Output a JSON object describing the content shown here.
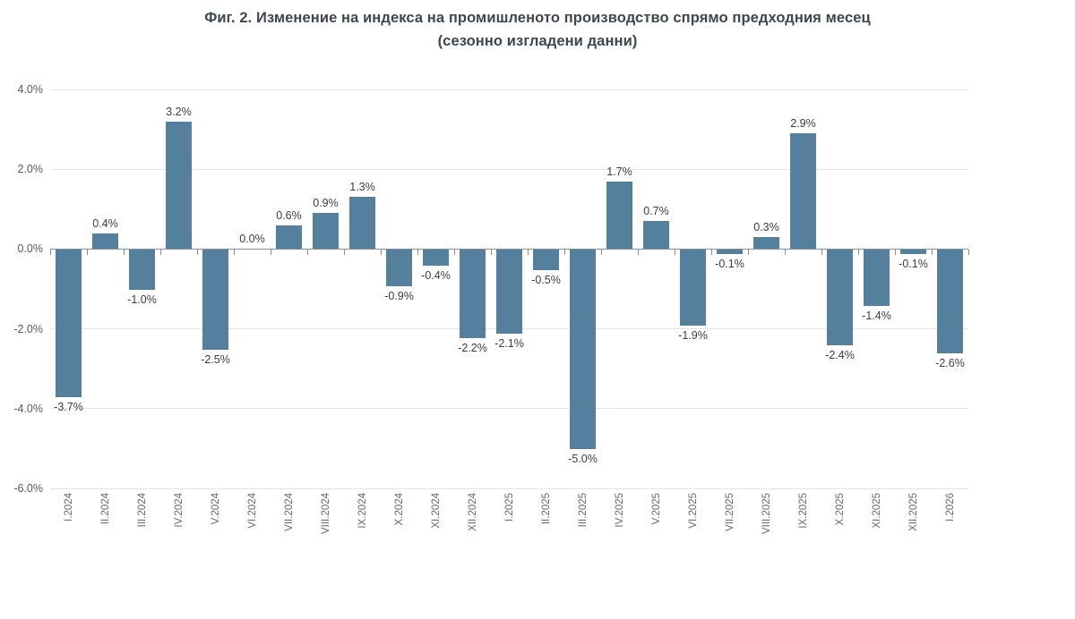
{
  "title": {
    "line1": "Фиг. 2. Изменение на индекса на промишленото производство спрямо предходния месец",
    "line2": "(сезонно изгладени данни)"
  },
  "chart_data": {
    "type": "bar",
    "title": "Фиг. 2. Изменение на индекса на промишленото производство спрямо предходния месец (сезонно изгладени данни)",
    "categories": [
      "I.2024",
      "II.2024",
      "III.2024",
      "IV.2024",
      "V.2024",
      "VI.2024",
      "VII.2024",
      "VIII.2024",
      "IX.2024",
      "X.2024",
      "XI.2024",
      "XII.2024",
      "I.2025",
      "II.2025",
      "III.2025",
      "IV.2025",
      "V.2025",
      "VI.2025",
      "VII.2025",
      "VIII.2025",
      "IX.2025",
      "X.2025",
      "XI.2025",
      "XII.2025",
      "I.2026"
    ],
    "values": [
      -3.7,
      0.4,
      -1.0,
      3.2,
      -2.5,
      0.0,
      0.6,
      0.9,
      1.3,
      -0.9,
      -0.4,
      -2.2,
      -2.1,
      -0.5,
      -5.0,
      1.7,
      0.7,
      -1.9,
      -0.1,
      0.3,
      2.9,
      -2.4,
      -1.4,
      -0.1,
      -2.6
    ],
    "value_labels": [
      "-3.7%",
      "0.4%",
      "-1.0%",
      "3.2%",
      "-2.5%",
      "0.0%",
      "0.6%",
      "0.9%",
      "1.3%",
      "-0.9%",
      "-0.4%",
      "-2.2%",
      "-2.1%",
      "-0.5%",
      "-5.0%",
      "1.7%",
      "0.7%",
      "-1.9%",
      "-0.1%",
      "0.3%",
      "2.9%",
      "-2.4%",
      "-1.4%",
      "-0.1%",
      "-2.6%"
    ],
    "xlabel": "",
    "ylabel": "",
    "ylim": [
      -6,
      4
    ],
    "y_ticks": [
      4,
      2,
      0,
      -2,
      -4,
      -6
    ],
    "y_tick_labels": [
      "4.0%",
      "2.0%",
      "0.0%",
      "-2.0%",
      "-4.0%",
      "-6.0%"
    ],
    "grid": true,
    "legend": "none",
    "colors": {
      "bar": "#547f9d",
      "gridline": "#e3e6ea",
      "axis_line": "#878e95",
      "value_label": "#3d3d3d",
      "y_axis_label": "#595959",
      "x_axis_label": "#6a6a6a",
      "title": "#3e474f"
    }
  }
}
